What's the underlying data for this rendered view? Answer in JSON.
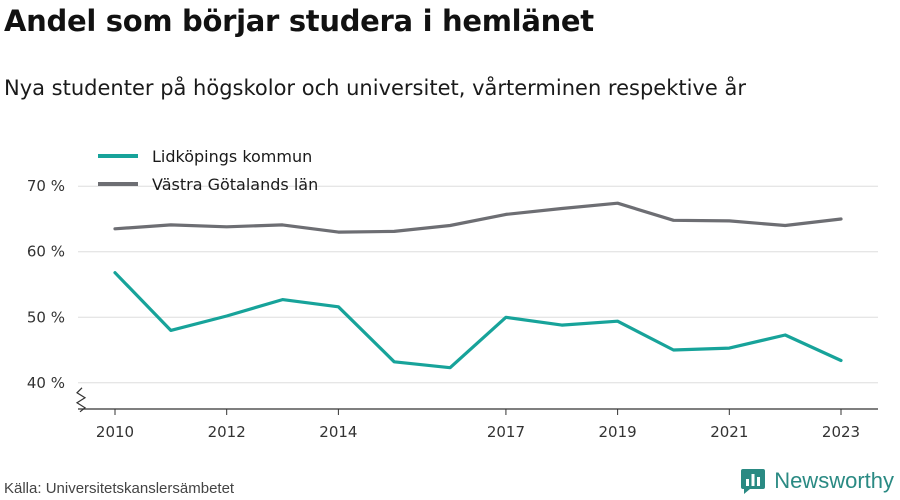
{
  "title": "Andel som börjar studera i hemlänet",
  "subtitle": "Nya studenter på högskolor och universitet, vårterminen respektive år",
  "source": "Källa: Universitetskanslersämbetet",
  "brand": {
    "name": "Newsworthy",
    "logo_icon": "bar-chart-logo-icon"
  },
  "colors": {
    "Lidköpings kommun": "#17a39a",
    "Västra Götalands län": "#6d6e73",
    "grid": "#dddddd",
    "axis": "#333333"
  },
  "chart_data": {
    "type": "line",
    "title": "Andel som börjar studera i hemlänet",
    "subtitle": "Nya studenter på högskolor och universitet, vårterminen respektive år",
    "xlabel": "",
    "ylabel": "",
    "x": [
      2010,
      2011,
      2012,
      2013,
      2014,
      2015,
      2016,
      2017,
      2018,
      2019,
      2020,
      2021,
      2022,
      2023
    ],
    "x_tick_labels": [
      "2010",
      "2012",
      "2014",
      "2017",
      "2019",
      "2021",
      "2023"
    ],
    "y_ticks": [
      40,
      50,
      60,
      70
    ],
    "y_tick_labels": [
      "40 %",
      "50 %",
      "60 %",
      "70 %"
    ],
    "ylim": [
      36,
      74
    ],
    "axis_break": true,
    "grid": true,
    "legend_position": "top-left",
    "series": [
      {
        "name": "Lidköpings kommun",
        "values": [
          56.8,
          48.0,
          50.2,
          52.7,
          51.6,
          43.2,
          42.3,
          50.0,
          48.8,
          49.4,
          45.0,
          45.3,
          47.3,
          43.4
        ]
      },
      {
        "name": "Västra Götalands län",
        "values": [
          63.5,
          64.1,
          63.8,
          64.1,
          63.0,
          63.1,
          64.0,
          65.7,
          66.6,
          67.4,
          64.8,
          64.7,
          64.0,
          65.0
        ]
      }
    ]
  }
}
